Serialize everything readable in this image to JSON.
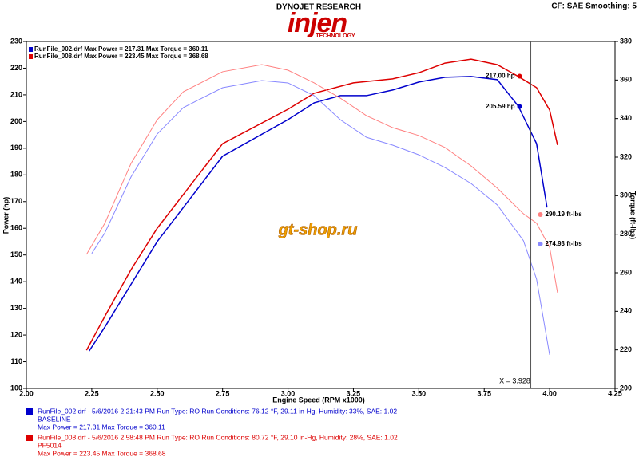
{
  "header": {
    "brand": "DYNOJET RESEARCH",
    "logo": "injen",
    "logo_sub": "TECHNOLOGY",
    "settings": "CF: SAE  Smoothing: 5"
  },
  "watermark": "gt-shop.ru",
  "chart_data": {
    "type": "line",
    "x_label": "Engine Speed (RPM x1000)",
    "y_label": "Power (hp)",
    "y2_label": "Torque (ft-lbs)",
    "xlim": [
      2.0,
      4.25
    ],
    "xticks": [
      {
        "value": 2.0,
        "label": "2.00"
      },
      {
        "value": 2.25,
        "label": "2.25"
      },
      {
        "value": 2.5,
        "label": "2.50"
      },
      {
        "value": 2.75,
        "label": "2.75"
      },
      {
        "value": 3.0,
        "label": "3.00"
      },
      {
        "value": 3.25,
        "label": "3.25"
      },
      {
        "value": 3.5,
        "label": "3.50"
      },
      {
        "value": 3.75,
        "label": "3.75"
      },
      {
        "value": 4.0,
        "label": "4.00"
      },
      {
        "value": 4.25,
        "label": "4.25"
      }
    ],
    "ylim": [
      100,
      230
    ],
    "yticks": [
      100,
      110,
      120,
      130,
      140,
      150,
      160,
      170,
      180,
      190,
      200,
      210,
      220,
      230
    ],
    "y2lim": [
      200,
      380
    ],
    "y2ticks": [
      200,
      220,
      240,
      260,
      280,
      300,
      320,
      340,
      360,
      380
    ],
    "grid": false,
    "legend": [
      {
        "text": "RunFile_002.drf Max Power = 217.31   Max Torque = 360.11",
        "color": "#0000cc"
      },
      {
        "text": "RunFile_008.drf Max Power = 223.45   Max Torque = 368.68",
        "color": "#dd0000"
      }
    ],
    "series": [
      {
        "color": "#0000cc",
        "axis": "y",
        "width": 1.5,
        "x": [
          2.24,
          2.3,
          2.4,
          2.5,
          2.75,
          3.0,
          3.1,
          3.2,
          3.3,
          3.4,
          3.5,
          3.6,
          3.7,
          3.8,
          3.88,
          3.95,
          3.99
        ],
        "values": [
          114,
          123,
          139,
          155,
          187,
          200.7,
          207,
          209.7,
          209.7,
          211.8,
          214.8,
          216.6,
          216.9,
          215.7,
          205.8,
          191.7,
          167.8
        ]
      },
      {
        "color": "#dd0000",
        "axis": "y",
        "width": 1.5,
        "x": [
          2.23,
          2.3,
          2.4,
          2.5,
          2.75,
          3.0,
          3.1,
          3.25,
          3.4,
          3.5,
          3.6,
          3.7,
          3.8,
          3.88,
          3.95,
          4.0,
          4.03
        ],
        "values": [
          114.3,
          127,
          144.5,
          160,
          191.7,
          204.6,
          210.6,
          214.5,
          216,
          218.3,
          221.9,
          223.4,
          221.3,
          216.9,
          212.7,
          204.3,
          191.2
        ]
      },
      {
        "color": "#8888ff",
        "axis": "y2",
        "width": 1,
        "x": [
          2.25,
          2.3,
          2.4,
          2.5,
          2.6,
          2.75,
          2.9,
          3.0,
          3.1,
          3.2,
          3.3,
          3.4,
          3.5,
          3.6,
          3.7,
          3.8,
          3.9,
          3.95,
          4.0
        ],
        "values": [
          270,
          280.7,
          309.7,
          332,
          345.7,
          356,
          359.7,
          358.5,
          351.9,
          339.4,
          330.3,
          326.2,
          321.2,
          314.6,
          306.3,
          295.2,
          276.6,
          256.7,
          217.4
        ]
      },
      {
        "color": "#ff8080",
        "axis": "y2",
        "width": 1,
        "x": [
          2.23,
          2.3,
          2.4,
          2.5,
          2.6,
          2.75,
          2.9,
          3.0,
          3.1,
          3.2,
          3.3,
          3.4,
          3.5,
          3.6,
          3.7,
          3.8,
          3.9,
          3.95,
          4.0,
          4.03
        ],
        "values": [
          269.5,
          285.7,
          316.7,
          339.4,
          353.9,
          364.3,
          368,
          365.1,
          358.5,
          350.6,
          341.5,
          335.3,
          331.2,
          325,
          315.4,
          303.9,
          290.6,
          285.7,
          273.2,
          249.7
        ]
      }
    ],
    "cursor": {
      "x": {
        "value": 3.928,
        "label": "X = 3.928"
      },
      "readouts": [
        {
          "value": 205.59,
          "label": "205.59 hp"
        },
        {
          "value": 217.0,
          "label": "217.00 hp"
        },
        {
          "value": 274.93,
          "label": "274.93 ft-lbs"
        },
        {
          "value": 290.19,
          "label": "290.19 ft-lbs"
        }
      ]
    },
    "runs": [
      {
        "color": "#0000cc",
        "lines": [
          "RunFile_002.drf - 5/6/2016 2:21:43 PM  Run Type: RO  Run Conditions: 76.12 °F, 29.11 in-Hg,  Humidity:  33%, SAE: 1.02",
          "BASELINE",
          "Max Power = 217.31  Max Torque = 360.11"
        ]
      },
      {
        "color": "#dd0000",
        "lines": [
          "RunFile_008.drf - 5/6/2016 2:58:48 PM  Run Type: RO  Run Conditions: 80.72 °F, 29.10 in-Hg,  Humidity:  28%, SAE: 1.02",
          "PF5014",
          "Max Power = 223.45  Max Torque = 368.68"
        ]
      }
    ]
  }
}
